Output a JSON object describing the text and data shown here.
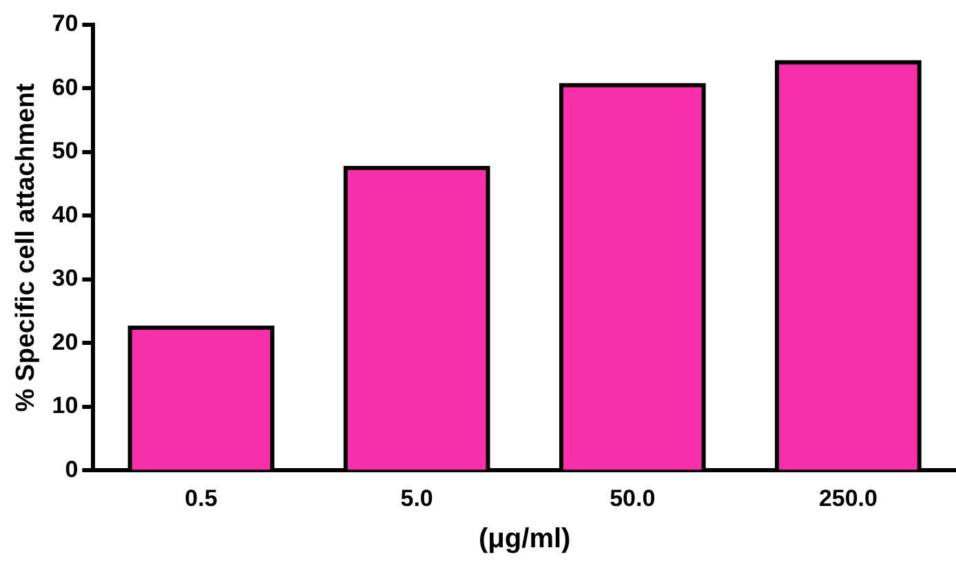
{
  "chart_data": {
    "type": "bar",
    "xlabel": "(μg/ml)",
    "ylabel": "% Specific cell attachment",
    "categories": [
      "0.5",
      "5.0",
      "50.0",
      "250.0"
    ],
    "values": [
      22.4,
      47.5,
      60.5,
      64.1
    ],
    "color": "#f72fa8",
    "ylim": [
      0,
      70
    ],
    "yticks": [
      0,
      10,
      20,
      30,
      40,
      50,
      60,
      70
    ],
    "grid": false,
    "legend": false
  }
}
